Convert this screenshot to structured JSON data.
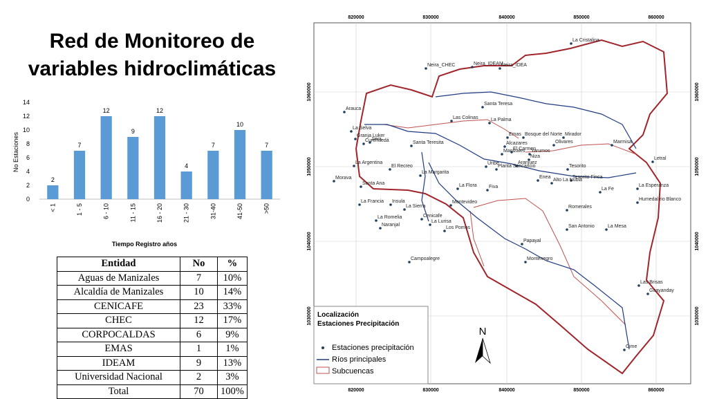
{
  "title": "Red de Monitoreo de variables hidroclimáticas",
  "chart_data": {
    "type": "bar",
    "categories": [
      "< 1",
      "1 - 5",
      "6 - 10",
      "11 - 15",
      "16 - 20",
      "21 - 30",
      "31-40",
      "41-50",
      ">50"
    ],
    "values": [
      2,
      7,
      12,
      9,
      12,
      4,
      7,
      10,
      7
    ],
    "title": "",
    "xlabel": "Tiempo Registro años",
    "ylabel": "No Estaciones",
    "ylim": [
      0,
      14
    ],
    "yticks": [
      "0",
      "2",
      "4",
      "6",
      "8",
      "10",
      "12",
      "14"
    ],
    "grid": false,
    "bar_color": "#5b9bd5"
  },
  "table": {
    "headers": [
      "Entidad",
      "No",
      "%"
    ],
    "rows": [
      [
        "Aguas de Manizales",
        "7",
        "10%"
      ],
      [
        "Alcaldía de Manizales",
        "10",
        "14%"
      ],
      [
        "CENICAFE",
        "23",
        "33%"
      ],
      [
        "CHEC",
        "12",
        "17%"
      ],
      [
        "CORPOCALDAS",
        "6",
        "9%"
      ],
      [
        "EMAS",
        "1",
        "1%"
      ],
      [
        "IDEAM",
        "9",
        "13%"
      ],
      [
        "Universidad Nacional",
        "2",
        "3%"
      ]
    ],
    "total": [
      "Total",
      "70",
      "100%"
    ]
  },
  "map": {
    "x_ticks": [
      "820000",
      "830000",
      "840000",
      "850000",
      "860000"
    ],
    "y_ticks": [
      "1060000",
      "1050000",
      "1040000",
      "1030000"
    ],
    "stations": [
      "La Cristalina",
      "Neira_CHEC",
      "Neira_IDEAM",
      "Neira_IDEA",
      "Santa Teresa",
      "Arauca",
      "Las Colinas",
      "La Palma",
      "La Selva",
      "Granja Luker",
      "Java",
      "Alcazares",
      "Emas",
      "Bosque del Norte",
      "Mirador",
      "Olivares",
      "Marmisa",
      "Santa Teresita",
      "El Carmen",
      "Manizales",
      "Yarumos",
      "Niza",
      "Letral",
      "La Argentina",
      "El Recreo",
      "Uribe",
      "Planta Sancancio",
      "Aranjuez",
      "Tesorito",
      "Morava",
      "Santa Ana",
      "La Margarita",
      "Enea",
      "Alto La Nubia",
      "Tesorito Finca",
      "La Esperanza",
      "La Fe",
      "La Flora",
      "Fiva",
      "Humedal rio Blanco",
      "La Francia",
      "Insula",
      "Montevideo",
      "La Sierra",
      "Romerales",
      "La Romelia",
      "Cenicafe",
      "La Lurisa",
      "Naranjal",
      "San Antonio",
      "La Mesa",
      "Los Pomos",
      "Papayal",
      "Montenegro",
      "Campoalegre",
      "Las Brisas",
      "Guayanday",
      "Cime",
      "Cureñuedá"
    ],
    "legend": {
      "title_line1": "Localización",
      "title_line2": "Estaciones Precipitación",
      "items": [
        "Estaciones precipitación",
        "Ríos principales",
        "Subcuencas"
      ]
    },
    "north_label": "N",
    "colors": {
      "basin": "#a0242a",
      "rivers": "#1f3b84",
      "subbasin": "#c0504d",
      "points": "#1f3f5f"
    }
  }
}
